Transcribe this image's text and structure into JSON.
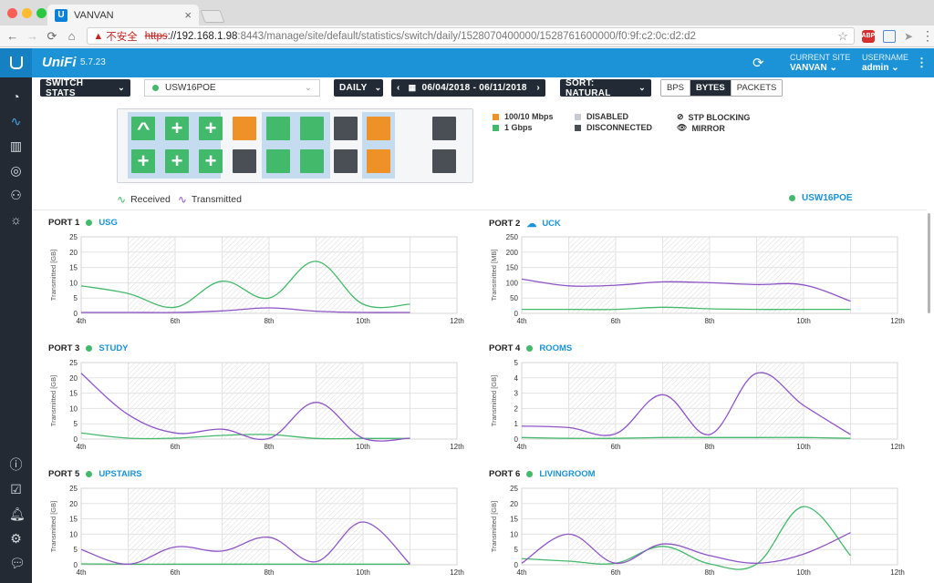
{
  "browser": {
    "tab_title": "VANVAN",
    "insecure_label": "不安全",
    "url_scheme": "https",
    "url_host": "://192.168.1.98",
    "url_rest": ":8443/manage/site/default/statistics/switch/daily/1528070400000/1528761600000/f0:9f:c2:0c:d2:d2",
    "abp_label": "ABP"
  },
  "header": {
    "brand": "UniFi",
    "version": "5.7.23",
    "site_label": "CURRENT SITE",
    "site_value": "VANVAN",
    "user_label": "USERNAME",
    "user_value": "admin"
  },
  "toolbar": {
    "stats_type": "SWITCH STATS",
    "device": "USW16POE",
    "period": "DAILY",
    "date_range": "06/04/2018 - 06/11/2018",
    "sort": "SORT: NATURAL",
    "units": [
      "BPS",
      "BYTES",
      "PACKETS"
    ],
    "active_unit": "BYTES"
  },
  "port_legend": {
    "speed_100": "100/10 Mbps",
    "speed_1g": "1 Gbps",
    "disabled": "DISABLED",
    "disconnected": "DISCONNECTED",
    "stp_blocking": "STP BLOCKING",
    "mirror": "MIRROR",
    "colors": {
      "orange": "#ee9228",
      "green": "#43b96b",
      "disabled": "#c8cbcf",
      "disconnected": "#4a4f56"
    }
  },
  "ports": {
    "top": [
      "green-up",
      "green-plus",
      "green-plus",
      "orange",
      "green",
      "green",
      "dark",
      "orange",
      "dark"
    ],
    "bottom": [
      "green-plus",
      "green-plus",
      "green-plus",
      "dark",
      "green",
      "green",
      "dark",
      "orange",
      "dark"
    ]
  },
  "series_legend": {
    "received": "Received",
    "transmitted": "Transmitted",
    "received_color": "#43b96b",
    "transmitted_color": "#8e54c8",
    "device": "USW16POE"
  },
  "chart_data": [
    {
      "type": "line",
      "port": "PORT 1",
      "name": "USG",
      "name_icon": "dot",
      "ylabel": "Transmitted [GB]",
      "ylim": [
        0,
        25
      ],
      "yticks": [
        0,
        5,
        10,
        15,
        20,
        25
      ],
      "xticks": [
        "4th",
        "6th",
        "8th",
        "10th",
        "12th"
      ],
      "xlim": [
        4,
        12
      ],
      "series": [
        {
          "name": "Received",
          "x": [
            4,
            5,
            6,
            7,
            8,
            9,
            10,
            11
          ],
          "values": [
            9,
            6.5,
            2,
            10.5,
            5,
            17,
            3,
            3
          ]
        },
        {
          "name": "Transmitted",
          "x": [
            4,
            5,
            6,
            7,
            8,
            9,
            10,
            11
          ],
          "values": [
            0.3,
            0.3,
            0.3,
            0.8,
            1.8,
            0.7,
            0.3,
            0.3
          ]
        }
      ]
    },
    {
      "type": "line",
      "port": "PORT 2",
      "name": "UCK",
      "name_icon": "cloud",
      "ylabel": "Transmitted [MB]",
      "ylim": [
        0,
        250
      ],
      "yticks": [
        0,
        50,
        100,
        150,
        200,
        250
      ],
      "xticks": [
        "4th",
        "6th",
        "8th",
        "10th",
        "12th"
      ],
      "xlim": [
        4,
        12
      ],
      "series": [
        {
          "name": "Received",
          "x": [
            4,
            5,
            6,
            7,
            8,
            9,
            10,
            11
          ],
          "values": [
            13,
            13,
            13,
            20,
            15,
            13,
            13,
            13
          ]
        },
        {
          "name": "Transmitted",
          "x": [
            4,
            5,
            6,
            7,
            8,
            9,
            10,
            11
          ],
          "values": [
            112,
            90,
            92,
            103,
            100,
            94,
            93,
            40
          ]
        }
      ]
    },
    {
      "type": "line",
      "port": "PORT 3",
      "name": "STUDY",
      "name_icon": "dot",
      "ylabel": "Transmitted [GB]",
      "ylim": [
        0,
        25
      ],
      "yticks": [
        0,
        5,
        10,
        15,
        20,
        25
      ],
      "xticks": [
        "4th",
        "6th",
        "8th",
        "10th",
        "12th"
      ],
      "xlim": [
        4,
        12
      ],
      "series": [
        {
          "name": "Received",
          "x": [
            4,
            5,
            6,
            7,
            8,
            9,
            10,
            11
          ],
          "values": [
            2,
            0.3,
            0.3,
            1.2,
            1.5,
            0.2,
            0.2,
            0.2
          ]
        },
        {
          "name": "Transmitted",
          "x": [
            4,
            5,
            6,
            7,
            8,
            9,
            10,
            11
          ],
          "values": [
            21.5,
            8,
            2,
            3.2,
            0.2,
            12,
            0.3,
            0.3
          ]
        }
      ]
    },
    {
      "type": "line",
      "port": "PORT 4",
      "name": "ROOMS",
      "name_icon": "dot",
      "ylabel": "Transmitted [GB]",
      "ylim": [
        0,
        5
      ],
      "yticks": [
        0,
        1,
        2,
        3,
        4,
        5
      ],
      "xticks": [
        "4th",
        "6th",
        "8th",
        "10th",
        "12th"
      ],
      "xlim": [
        4,
        12
      ],
      "series": [
        {
          "name": "Received",
          "x": [
            4,
            5,
            6,
            7,
            8,
            9,
            10,
            11
          ],
          "values": [
            0.1,
            0.05,
            0.05,
            0.1,
            0.1,
            0.1,
            0.1,
            0.05
          ]
        },
        {
          "name": "Transmitted",
          "x": [
            4,
            5,
            6,
            7,
            8,
            9,
            10,
            11
          ],
          "values": [
            0.85,
            0.75,
            0.35,
            2.9,
            0.3,
            4.3,
            2.2,
            0.3
          ]
        }
      ]
    },
    {
      "type": "line",
      "port": "PORT 5",
      "name": "UPSTAIRS",
      "name_icon": "dot",
      "ylabel": "Transmitted [GB]",
      "ylim": [
        0,
        25
      ],
      "yticks": [
        0,
        5,
        10,
        15,
        20,
        25
      ],
      "xticks": [
        "4th",
        "6th",
        "8th",
        "10th",
        "12th"
      ],
      "xlim": [
        4,
        12
      ],
      "series": [
        {
          "name": "Received",
          "x": [
            4,
            5,
            6,
            7,
            8,
            9,
            10,
            11
          ],
          "values": [
            0.3,
            0.2,
            0.2,
            0.2,
            0.2,
            0.2,
            0.2,
            0.2
          ]
        },
        {
          "name": "Transmitted",
          "x": [
            4,
            5,
            6,
            7,
            8,
            9,
            10,
            11
          ],
          "values": [
            5,
            0.2,
            5.8,
            4.5,
            9,
            1,
            14,
            0.3
          ]
        }
      ]
    },
    {
      "type": "line",
      "port": "PORT 6",
      "name": "LIVINGROOM",
      "name_icon": "dot",
      "ylabel": "Transmitted [GB]",
      "ylim": [
        0,
        25
      ],
      "yticks": [
        0,
        5,
        10,
        15,
        20,
        25
      ],
      "xticks": [
        "4th",
        "6th",
        "8th",
        "10th",
        "12th"
      ],
      "xlim": [
        4,
        12
      ],
      "series": [
        {
          "name": "Received",
          "x": [
            4,
            5,
            6,
            7,
            8,
            9,
            10,
            11
          ],
          "values": [
            2,
            1.2,
            0.5,
            6,
            0.3,
            0.2,
            19,
            3
          ]
        },
        {
          "name": "Transmitted",
          "x": [
            4,
            5,
            6,
            7,
            8,
            9,
            10,
            11
          ],
          "values": [
            0.5,
            10,
            0.5,
            6.8,
            3,
            0.5,
            3.5,
            10.5
          ]
        }
      ]
    }
  ]
}
